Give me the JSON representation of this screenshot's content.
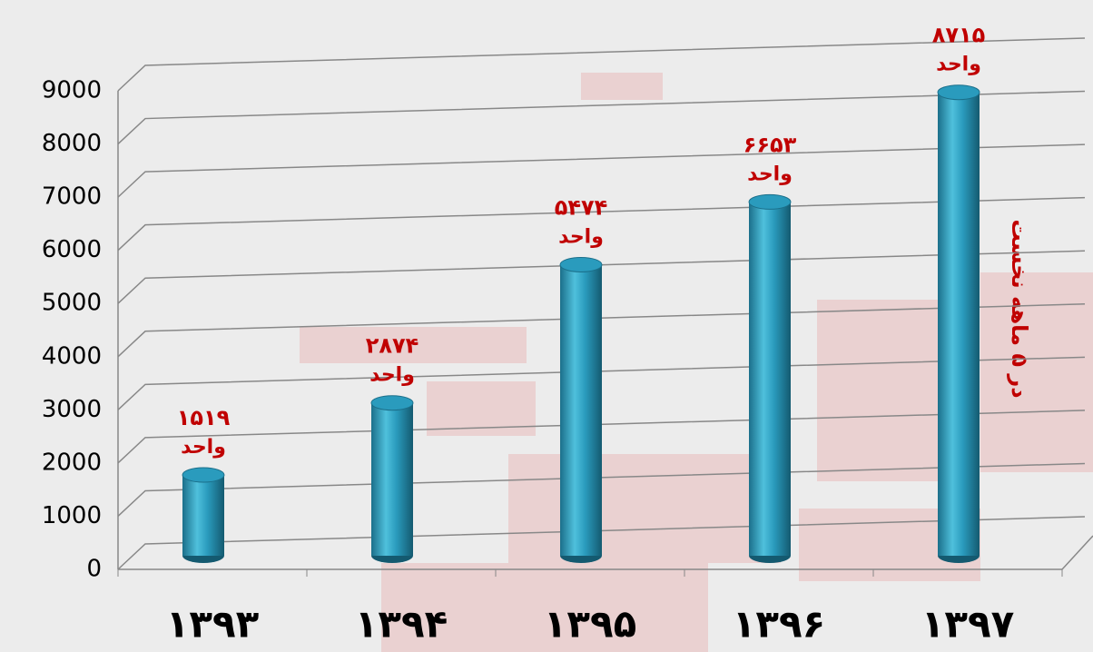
{
  "chart_data": {
    "type": "bar",
    "categories": [
      "۱۳۹۳",
      "۱۳۹۴",
      "۱۳۹۵",
      "۱۳۹۶",
      "۱۳۹۷"
    ],
    "values": [
      1519,
      2874,
      5474,
      6653,
      8715
    ],
    "value_labels": [
      "۱۵۱۹",
      "۲۸۷۴",
      "۵۴۷۴",
      "۶۶۵۳",
      "۸۷۱۵"
    ],
    "value_unit": "واحد",
    "annotation": "در ۵ ماهه نخست",
    "color": "#2a9bbd",
    "label_color": "#c00000",
    "ylim": [
      0,
      9000
    ],
    "yticks": [
      0,
      1000,
      2000,
      3000,
      4000,
      5000,
      6000,
      7000,
      8000,
      9000
    ],
    "grid": true
  }
}
